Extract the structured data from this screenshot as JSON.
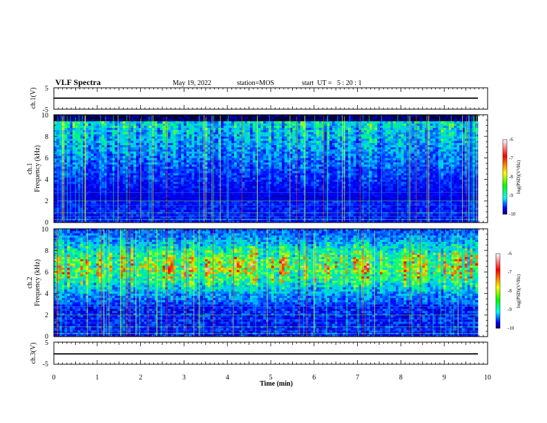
{
  "header": {
    "title": "VLF Spectra",
    "date": "May 19, 2022",
    "station": "station=MOS",
    "start": "start  UT =   5 : 20 : 1"
  },
  "chart_data": [
    {
      "type": "line",
      "panel": "ch1-voltage",
      "ylabel": "ch.1(V)",
      "ylim": [
        -5,
        5
      ],
      "y_ticks": [
        "5",
        "0",
        "-5"
      ],
      "level": 0,
      "xlim": [
        0,
        10
      ]
    },
    {
      "type": "heatmap",
      "panel": "ch1-spectrogram",
      "ylabel_top": "ch.1",
      "ylabel": "Frequency (kHz)",
      "ylim": [
        0,
        10
      ],
      "y_ticks": [
        "0",
        "2",
        "4",
        "6",
        "8",
        "10"
      ],
      "xlim": [
        0,
        10
      ],
      "activity_band_khz": [
        2,
        9.3
      ],
      "colorbar": {
        "label": "log(PSD)(V²/Hz)",
        "range": [
          -10,
          -6
        ],
        "ticks": [
          "-6",
          "-7",
          "-8",
          "-9",
          "-10"
        ]
      }
    },
    {
      "type": "heatmap",
      "panel": "ch2-spectrogram",
      "ylabel_top": "ch.2",
      "ylabel": "Frequency (kHz)",
      "ylim": [
        0,
        10
      ],
      "y_ticks": [
        "0",
        "2",
        "4",
        "6",
        "8",
        "10"
      ],
      "xlim": [
        0,
        10
      ],
      "activity_band_khz": [
        3,
        10
      ],
      "colorbar": {
        "label": "log(PSD)(V²/Hz)",
        "range": [
          -10,
          -6
        ],
        "ticks": [
          "-6",
          "-7",
          "-8",
          "-9",
          "-10"
        ]
      }
    },
    {
      "type": "line",
      "panel": "ch3-voltage",
      "ylabel": "ch.3(V)",
      "ylim": [
        -5,
        5
      ],
      "y_ticks": [
        "5",
        "0",
        "-5"
      ],
      "level": 0,
      "xlim": [
        0,
        10
      ]
    }
  ],
  "x_axis": {
    "label": "Time (min)",
    "ticks": [
      "0",
      "1",
      "2",
      "3",
      "4",
      "5",
      "6",
      "7",
      "8",
      "9",
      "10"
    ]
  },
  "colors": {
    "colormap": [
      "#ffffff",
      "#ff0000",
      "#ffff00",
      "#00ff00",
      "#00ffff",
      "#0000ff",
      "#000066"
    ],
    "background_spectrum": "#000044"
  }
}
